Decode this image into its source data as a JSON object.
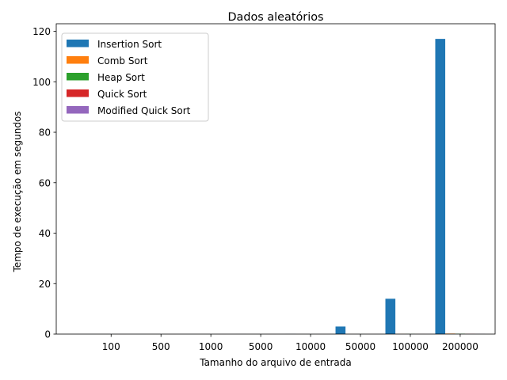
{
  "chart_data": {
    "type": "bar",
    "title": "Dados aleatórios",
    "xlabel": "Tamanho do arquivo de entrada",
    "ylabel": "Tempo de execução em segundos",
    "categories": [
      "100",
      "500",
      "1000",
      "5000",
      "10000",
      "50000",
      "100000",
      "200000"
    ],
    "ylim": [
      0,
      123
    ],
    "yticks": [
      0,
      20,
      40,
      60,
      80,
      100,
      120
    ],
    "grid": false,
    "legend_position": "top-left",
    "series": [
      {
        "name": "Insertion Sort",
        "color": "#1f77b4",
        "values": [
          0,
          0,
          0,
          0.01,
          0.03,
          3.0,
          14.0,
          117.0
        ]
      },
      {
        "name": "Comb Sort",
        "color": "#ff7f0e",
        "values": [
          0,
          0,
          0,
          0,
          0,
          0.02,
          0.05,
          0.2
        ]
      },
      {
        "name": "Heap Sort",
        "color": "#2ca02c",
        "values": [
          0,
          0,
          0,
          0,
          0,
          0.02,
          0.05,
          0.15
        ]
      },
      {
        "name": "Quick Sort",
        "color": "#d62728",
        "values": [
          0,
          0,
          0,
          0,
          0,
          0.01,
          0.03,
          0.06
        ]
      },
      {
        "name": "Modified Quick Sort",
        "color": "#9467bd",
        "values": [
          0,
          0,
          0,
          0,
          0,
          0.01,
          0.03,
          0.06
        ]
      }
    ]
  }
}
